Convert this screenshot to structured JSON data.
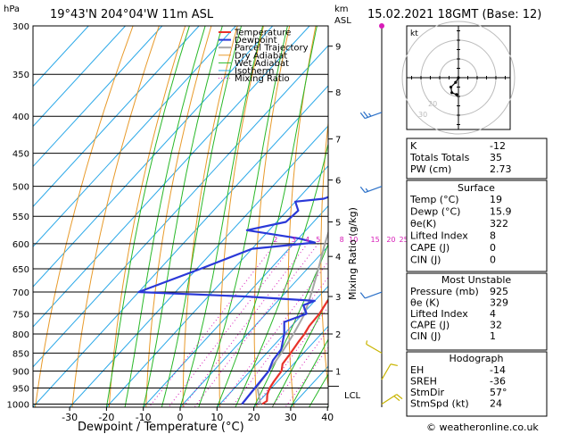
{
  "header": {
    "location": "19°43'N  204°04'W  11m  ASL",
    "datetime": "15.02.2021  18GMT  (Base: 12)",
    "copyright": "© weatheronline.co.uk"
  },
  "chart_data": {
    "type": "skew-t",
    "xlabel": "Dewpoint / Temperature (°C)",
    "ylabel": "hPa",
    "right_axis_label": "Mixing Ratio (g/kg)",
    "km_label": "km",
    "asl_label": "ASL",
    "lcl_label": "LCL",
    "pressure_ticks": [
      300,
      350,
      400,
      450,
      500,
      550,
      600,
      650,
      700,
      750,
      800,
      850,
      900,
      950,
      1000
    ],
    "temp_ticks": [
      -30,
      -20,
      -10,
      0,
      10,
      20,
      30,
      40
    ],
    "xlim": [
      -35,
      40
    ],
    "plim": [
      300,
      1010
    ],
    "km_ticks": [
      {
        "p": 320,
        "label": "9"
      },
      {
        "p": 370,
        "label": "8"
      },
      {
        "p": 430,
        "label": "7"
      },
      {
        "p": 490,
        "label": "6"
      },
      {
        "p": 560,
        "label": "5"
      },
      {
        "p": 625,
        "label": "4"
      },
      {
        "p": 710,
        "label": "3"
      },
      {
        "p": 800,
        "label": "2"
      },
      {
        "p": 900,
        "label": "1"
      }
    ],
    "lcl_pressure": 945,
    "mixing_ratio_labels": [
      "2",
      "3",
      "4",
      "5",
      "8",
      "10",
      "15",
      "20",
      "25"
    ],
    "legend": [
      "Temperature",
      "Dewpoint",
      "Parcel Trajectory",
      "Dry Adiabat",
      "Wet Adiabat",
      "Isotherm",
      "Mixing Ratio"
    ],
    "colors": {
      "temperature": "#e8322a",
      "dewpoint": "#2a38d8",
      "parcel": "#a6a6a6",
      "dry_adiabat": "#e89a2a",
      "wet_adiabat": "#28b828",
      "isotherm": "#2aa8e8",
      "mixing_ratio": "#d81cb8"
    },
    "series": [
      {
        "name": "Temperature",
        "points": [
          [
            300,
            -30.5
          ],
          [
            320,
            -27
          ],
          [
            350,
            -22.5
          ],
          [
            380,
            -19
          ],
          [
            400,
            -17
          ],
          [
            420,
            -14
          ],
          [
            450,
            -10
          ],
          [
            480,
            -6
          ],
          [
            500,
            -4.5
          ],
          [
            530,
            -1.5
          ],
          [
            550,
            0.5
          ],
          [
            580,
            3
          ],
          [
            600,
            5
          ],
          [
            650,
            8.5
          ],
          [
            680,
            11
          ],
          [
            700,
            14
          ],
          [
            720,
            13.5
          ],
          [
            750,
            14.5
          ],
          [
            780,
            14.8
          ],
          [
            800,
            15.5
          ],
          [
            820,
            15.8
          ],
          [
            850,
            16.5
          ],
          [
            880,
            17
          ],
          [
            900,
            18.5
          ],
          [
            930,
            19
          ],
          [
            950,
            19.5
          ],
          [
            970,
            20.5
          ],
          [
            990,
            22
          ],
          [
            1000,
            21.5
          ]
        ]
      },
      {
        "name": "Dewpoint",
        "points": [
          [
            300,
            -48
          ],
          [
            310,
            -40
          ],
          [
            320,
            -38
          ],
          [
            350,
            -42
          ],
          [
            360,
            -37
          ],
          [
            400,
            -22
          ],
          [
            410,
            -22
          ],
          [
            440,
            -14
          ],
          [
            450,
            -14
          ],
          [
            470,
            -13
          ],
          [
            490,
            -9
          ],
          [
            510,
            -10
          ],
          [
            520,
            -13
          ],
          [
            525,
            -20
          ],
          [
            540,
            -17
          ],
          [
            560,
            -17.5
          ],
          [
            575,
            -26
          ],
          [
            590,
            -10
          ],
          [
            598,
            -4.5
          ],
          [
            610,
            -20
          ],
          [
            650,
            -29
          ],
          [
            700,
            -40
          ],
          [
            710,
            -10
          ],
          [
            720,
            10
          ],
          [
            730,
            8
          ],
          [
            750,
            11
          ],
          [
            760,
            9
          ],
          [
            770,
            7
          ],
          [
            790,
            9
          ],
          [
            800,
            10
          ],
          [
            840,
            13
          ],
          [
            870,
            13.5
          ],
          [
            900,
            15
          ],
          [
            950,
            15.5
          ],
          [
            1000,
            16
          ]
        ]
      },
      {
        "name": "Parcel Trajectory",
        "points": [
          [
            300,
            -34
          ],
          [
            340,
            -29
          ],
          [
            400,
            -22
          ],
          [
            450,
            -16
          ],
          [
            500,
            -11
          ],
          [
            550,
            -6
          ],
          [
            600,
            -1.5
          ],
          [
            650,
            3
          ],
          [
            700,
            7
          ],
          [
            750,
            10.5
          ],
          [
            800,
            12.5
          ],
          [
            850,
            14
          ],
          [
            900,
            15
          ],
          [
            945,
            15.7
          ],
          [
            1000,
            21
          ]
        ]
      }
    ],
    "wind_barbs": [
      {
        "p": 395,
        "dir_deg": 250,
        "knots": 25
      },
      {
        "p": 500,
        "dir_deg": 250,
        "knots": 15
      },
      {
        "p": 700,
        "dir_deg": 250,
        "knots": 10
      },
      {
        "p": 850,
        "dir_deg": 300,
        "knots": 5
      },
      {
        "p": 925,
        "dir_deg": 30,
        "knots": 10
      },
      {
        "p": 1000,
        "dir_deg": 57,
        "knots": 24
      }
    ]
  },
  "hodograph": {
    "label": "kt",
    "ring_labels": [
      "20",
      "30"
    ],
    "points": [
      [
        0,
        0
      ],
      [
        -3,
        -5
      ],
      [
        -8,
        -10
      ],
      [
        -7,
        -16
      ],
      [
        -2,
        -18
      ]
    ]
  },
  "indices": {
    "rows": [
      {
        "label": "K",
        "value": "-12"
      },
      {
        "label": "Totals Totals",
        "value": "35"
      },
      {
        "label": "PW (cm)",
        "value": "2.73"
      }
    ]
  },
  "surface": {
    "title": "Surface",
    "rows": [
      {
        "label": "Temp (°C)",
        "value": "19"
      },
      {
        "label": "Dewp (°C)",
        "value": "15.9"
      },
      {
        "label": "θe(K)",
        "value": "322"
      },
      {
        "label": "Lifted Index",
        "value": "8"
      },
      {
        "label": "CAPE (J)",
        "value": "0"
      },
      {
        "label": "CIN (J)",
        "value": "0"
      }
    ]
  },
  "most_unstable": {
    "title": "Most Unstable",
    "rows": [
      {
        "label": "Pressure (mb)",
        "value": "925"
      },
      {
        "label": "θe (K)",
        "value": "329"
      },
      {
        "label": "Lifted Index",
        "value": "4"
      },
      {
        "label": "CAPE (J)",
        "value": "32"
      },
      {
        "label": "CIN (J)",
        "value": "1"
      }
    ]
  },
  "hodograph_table": {
    "title": "Hodograph",
    "rows": [
      {
        "label": "EH",
        "value": "-14"
      },
      {
        "label": "SREH",
        "value": "-36"
      },
      {
        "label": "StmDir",
        "value": "57°"
      },
      {
        "label": "StmSpd (kt)",
        "value": "24"
      }
    ]
  }
}
